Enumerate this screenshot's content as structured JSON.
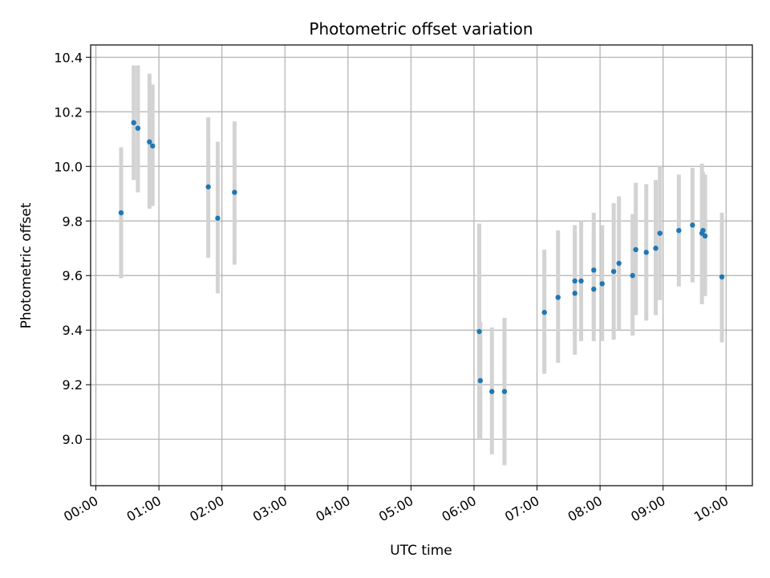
{
  "chart_data": {
    "type": "scatter",
    "title": "Photometric offset variation",
    "xlabel": "UTC time",
    "ylabel": "Photometric offset",
    "x_is_time": true,
    "xlim": [
      "-00:05",
      "10:25"
    ],
    "ylim": [
      8.83,
      10.445
    ],
    "grid": true,
    "x_ticks": [
      "00:00",
      "01:00",
      "02:00",
      "03:00",
      "04:00",
      "05:00",
      "06:00",
      "07:00",
      "08:00",
      "09:00",
      "10:00"
    ],
    "y_ticks": [
      "9.0",
      "9.2",
      "9.4",
      "9.6",
      "9.8",
      "10.0",
      "10.2",
      "10.4"
    ],
    "marker_color": "#1f77b4",
    "errorbar_color": "#d3d3d3",
    "points": [
      {
        "t": "00:24",
        "y": 9.83,
        "lo": 9.59,
        "hi": 10.07
      },
      {
        "t": "00:36",
        "y": 10.16,
        "lo": 9.95,
        "hi": 10.37
      },
      {
        "t": "00:40",
        "y": 10.14,
        "lo": 9.905,
        "hi": 10.37
      },
      {
        "t": "00:51",
        "y": 10.09,
        "lo": 9.845,
        "hi": 10.34
      },
      {
        "t": "00:54",
        "y": 10.075,
        "lo": 9.855,
        "hi": 10.3
      },
      {
        "t": "01:47",
        "y": 9.925,
        "lo": 9.665,
        "hi": 10.18
      },
      {
        "t": "01:56",
        "y": 9.81,
        "lo": 9.535,
        "hi": 10.09
      },
      {
        "t": "02:12",
        "y": 9.905,
        "lo": 9.64,
        "hi": 10.165
      },
      {
        "t": "06:05",
        "y": 9.395,
        "lo": 9.0,
        "hi": 9.79
      },
      {
        "t": "06:06",
        "y": 9.215,
        "lo": 9.0,
        "hi": 9.43
      },
      {
        "t": "06:17",
        "y": 9.175,
        "lo": 8.945,
        "hi": 9.41
      },
      {
        "t": "06:29",
        "y": 9.175,
        "lo": 8.905,
        "hi": 9.445
      },
      {
        "t": "07:07",
        "y": 9.465,
        "lo": 9.24,
        "hi": 9.695
      },
      {
        "t": "07:20",
        "y": 9.52,
        "lo": 9.28,
        "hi": 9.765
      },
      {
        "t": "07:36",
        "y": 9.58,
        "lo": 9.38,
        "hi": 9.785
      },
      {
        "t": "07:36",
        "y": 9.535,
        "lo": 9.31,
        "hi": 9.76
      },
      {
        "t": "07:42",
        "y": 9.58,
        "lo": 9.36,
        "hi": 9.8
      },
      {
        "t": "07:54",
        "y": 9.62,
        "lo": 9.41,
        "hi": 9.83
      },
      {
        "t": "07:54",
        "y": 9.55,
        "lo": 9.36,
        "hi": 9.75
      },
      {
        "t": "08:02",
        "y": 9.57,
        "lo": 9.36,
        "hi": 9.785
      },
      {
        "t": "08:13",
        "y": 9.615,
        "lo": 9.365,
        "hi": 9.865
      },
      {
        "t": "08:18",
        "y": 9.645,
        "lo": 9.4,
        "hi": 9.89
      },
      {
        "t": "08:31",
        "y": 9.6,
        "lo": 9.38,
        "hi": 9.825
      },
      {
        "t": "08:34",
        "y": 9.695,
        "lo": 9.455,
        "hi": 9.94
      },
      {
        "t": "08:44",
        "y": 9.685,
        "lo": 9.435,
        "hi": 9.935
      },
      {
        "t": "08:53",
        "y": 9.7,
        "lo": 9.455,
        "hi": 9.95
      },
      {
        "t": "08:57",
        "y": 9.755,
        "lo": 9.51,
        "hi": 10.0
      },
      {
        "t": "09:15",
        "y": 9.765,
        "lo": 9.56,
        "hi": 9.97
      },
      {
        "t": "09:28",
        "y": 9.785,
        "lo": 9.575,
        "hi": 9.995
      },
      {
        "t": "09:37",
        "y": 9.755,
        "lo": 9.495,
        "hi": 10.01
      },
      {
        "t": "09:38",
        "y": 9.765,
        "lo": 9.555,
        "hi": 9.98
      },
      {
        "t": "09:40",
        "y": 9.745,
        "lo": 9.525,
        "hi": 9.97
      },
      {
        "t": "09:56",
        "y": 9.595,
        "lo": 9.355,
        "hi": 9.83
      }
    ]
  }
}
